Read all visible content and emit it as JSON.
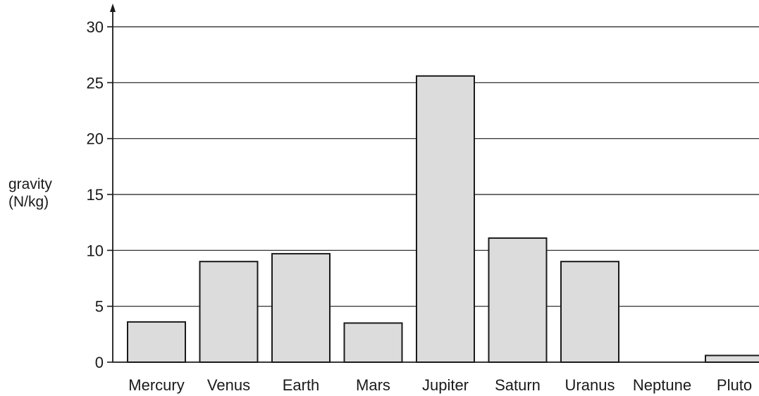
{
  "chart_data": {
    "type": "bar",
    "title": "",
    "xlabel": "",
    "ylabel_lines": [
      "gravity",
      "(N/kg)"
    ],
    "categories": [
      "Mercury",
      "Venus",
      "Earth",
      "Mars",
      "Jupiter",
      "Saturn",
      "Uranus",
      "Neptune",
      "Pluto"
    ],
    "values": [
      3.6,
      9.0,
      9.7,
      3.5,
      25.6,
      11.1,
      9.0,
      null,
      0.6
    ],
    "ylim": [
      0,
      30
    ],
    "yticks": [
      0,
      5,
      10,
      15,
      20,
      25,
      30
    ],
    "grid": true,
    "colors": {
      "bar_fill": "#dcdcdc",
      "bar_stroke": "#1a1a1a",
      "grid": "#1a1a1a",
      "axis": "#1a1a1a"
    }
  }
}
